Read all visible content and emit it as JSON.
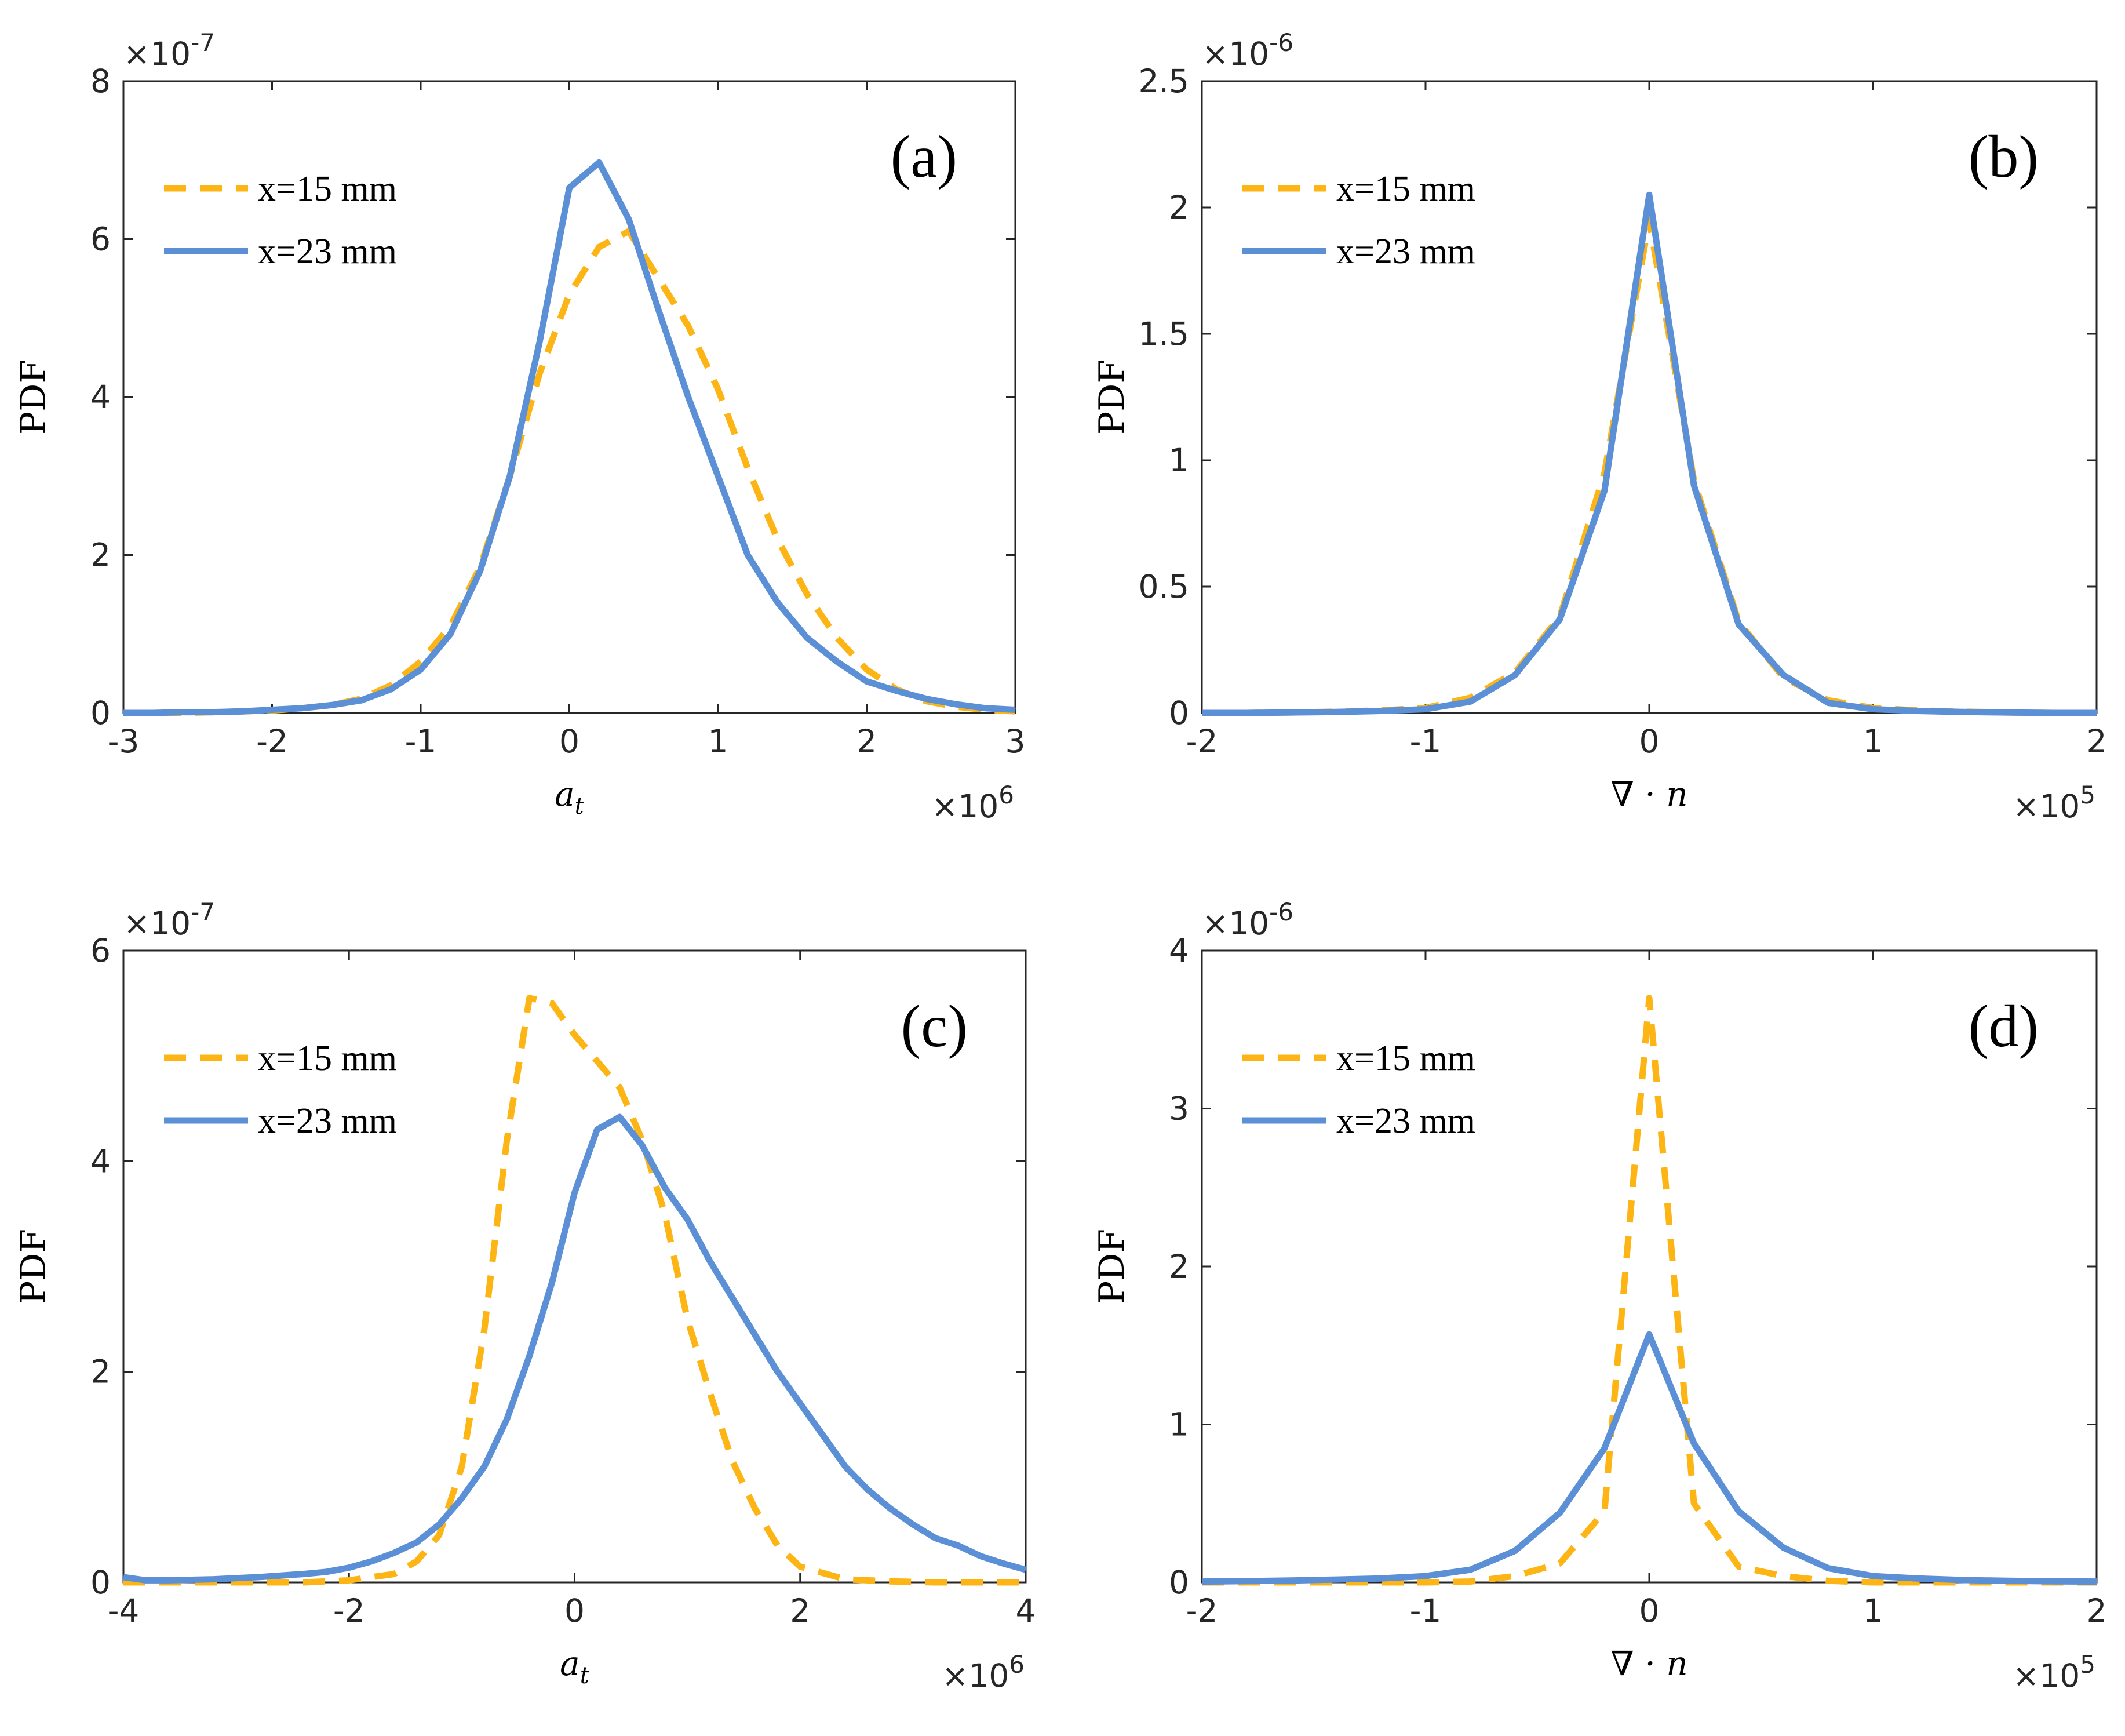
{
  "chart_data": [
    {
      "type": "line",
      "panel_label": "(a)",
      "xlabel": "a_t",
      "xlabel_main": "a",
      "xlabel_sub": "t",
      "ylabel": "PDF",
      "x_exponent": "×10^6",
      "x_exp_base": "×10",
      "x_exp_power": "6",
      "y_exponent": "×10^-7",
      "y_exp_base": "×10",
      "y_exp_power": "-7",
      "xlim": [
        -3,
        3
      ],
      "ylim": [
        0,
        8
      ],
      "xticks": [
        -3,
        -2,
        -1,
        0,
        1,
        2,
        3
      ],
      "xtick_labels": [
        "-3",
        "-2",
        "-1",
        "0",
        "1",
        "2",
        "3"
      ],
      "yticks": [
        0,
        2,
        4,
        6,
        8
      ],
      "ytick_labels": [
        "0",
        "2",
        "4",
        "6",
        "8"
      ],
      "legend_position": "top-left",
      "grid": false,
      "series": [
        {
          "name": "x=15 mm",
          "style": "dashed",
          "color": "#FDB515",
          "x": [
            -3,
            -2.8,
            -2.6,
            -2.4,
            -2.2,
            -2,
            -1.8,
            -1.6,
            -1.4,
            -1.2,
            -1,
            -0.8,
            -0.6,
            -0.4,
            -0.2,
            0,
            0.2,
            0.4,
            0.6,
            0.8,
            1,
            1.2,
            1.4,
            1.6,
            1.8,
            2,
            2.2,
            2.4,
            2.6,
            2.8,
            3
          ],
          "y": [
            0,
            0,
            0,
            0.01,
            0.02,
            0.03,
            0.06,
            0.1,
            0.18,
            0.35,
            0.65,
            1.1,
            1.85,
            3.0,
            4.3,
            5.3,
            5.9,
            6.1,
            5.5,
            4.9,
            4.1,
            3.1,
            2.2,
            1.5,
            0.95,
            0.55,
            0.3,
            0.15,
            0.08,
            0.04,
            0.02
          ]
        },
        {
          "name": "x=23 mm",
          "style": "solid",
          "color": "#5B8FD6",
          "x": [
            -3,
            -2.8,
            -2.6,
            -2.4,
            -2.2,
            -2,
            -1.8,
            -1.6,
            -1.4,
            -1.2,
            -1,
            -0.8,
            -0.6,
            -0.4,
            -0.2,
            0,
            0.2,
            0.4,
            0.6,
            0.8,
            1,
            1.2,
            1.4,
            1.6,
            1.8,
            2,
            2.2,
            2.4,
            2.6,
            2.8,
            3
          ],
          "y": [
            0,
            0,
            0.01,
            0.01,
            0.02,
            0.04,
            0.06,
            0.1,
            0.16,
            0.3,
            0.55,
            1.0,
            1.8,
            3.0,
            4.7,
            6.65,
            6.97,
            6.25,
            5.1,
            4.0,
            3.0,
            2.0,
            1.4,
            0.95,
            0.65,
            0.4,
            0.28,
            0.18,
            0.11,
            0.06,
            0.04
          ]
        }
      ]
    },
    {
      "type": "line",
      "panel_label": "(b)",
      "xlabel": "∇ · n",
      "xlabel_main": "∇ · n",
      "xlabel_sub": "",
      "ylabel": "PDF",
      "x_exponent": "×10^5",
      "x_exp_base": "×10",
      "x_exp_power": "5",
      "y_exponent": "×10^-6",
      "y_exp_base": "×10",
      "y_exp_power": "-6",
      "xlim": [
        -2,
        2
      ],
      "ylim": [
        0,
        2.5
      ],
      "xticks": [
        -2,
        -1,
        0,
        1,
        2
      ],
      "xtick_labels": [
        "-2",
        "-1",
        "0",
        "1",
        "2"
      ],
      "yticks": [
        0,
        0.5,
        1,
        1.5,
        2,
        2.5
      ],
      "ytick_labels": [
        "0",
        "0.5",
        "1",
        "1.5",
        "2",
        "2.5"
      ],
      "legend_position": "top-left",
      "grid": false,
      "series": [
        {
          "name": "x=15 mm",
          "style": "dashed",
          "color": "#FDB515",
          "x": [
            -2,
            -1.8,
            -1.6,
            -1.4,
            -1.2,
            -1,
            -0.8,
            -0.6,
            -0.4,
            -0.2,
            0,
            0.2,
            0.4,
            0.6,
            0.8,
            1,
            1.2,
            1.4,
            1.6,
            1.8,
            2
          ],
          "y": [
            0,
            0,
            0.002,
            0.005,
            0.01,
            0.02,
            0.06,
            0.16,
            0.38,
            0.95,
            1.95,
            0.92,
            0.36,
            0.14,
            0.05,
            0.02,
            0.01,
            0.005,
            0.002,
            0,
            0
          ]
        },
        {
          "name": "x=23 mm",
          "style": "solid",
          "color": "#5B8FD6",
          "x": [
            -2,
            -1.8,
            -1.6,
            -1.4,
            -1.2,
            -1,
            -0.8,
            -0.6,
            -0.4,
            -0.2,
            0,
            0.2,
            0.4,
            0.6,
            0.8,
            1,
            1.2,
            1.4,
            1.6,
            1.8,
            2
          ],
          "y": [
            0,
            0,
            0.002,
            0.004,
            0.008,
            0.015,
            0.045,
            0.15,
            0.37,
            0.88,
            2.05,
            0.9,
            0.35,
            0.15,
            0.04,
            0.015,
            0.008,
            0.004,
            0.002,
            0,
            0
          ]
        }
      ]
    },
    {
      "type": "line",
      "panel_label": "(c)",
      "xlabel": "a_t",
      "xlabel_main": "a",
      "xlabel_sub": "t",
      "ylabel": "PDF",
      "x_exponent": "×10^6",
      "x_exp_base": "×10",
      "x_exp_power": "6",
      "y_exponent": "×10^-7",
      "y_exp_base": "×10",
      "y_exp_power": "-7",
      "xlim": [
        -4,
        4
      ],
      "ylim": [
        0,
        6
      ],
      "xticks": [
        -4,
        -2,
        0,
        2,
        4
      ],
      "xtick_labels": [
        "-4",
        "-2",
        "0",
        "2",
        "4"
      ],
      "yticks": [
        0,
        2,
        4,
        6
      ],
      "ytick_labels": [
        "0",
        "2",
        "4",
        "6"
      ],
      "legend_position": "top-left",
      "grid": false,
      "series": [
        {
          "name": "x=15 mm",
          "style": "dashed",
          "color": "#FDB515",
          "x": [
            -4,
            -3.6,
            -3.2,
            -2.8,
            -2.4,
            -2,
            -1.6,
            -1.4,
            -1.2,
            -1,
            -0.8,
            -0.6,
            -0.4,
            -0.2,
            0,
            0.2,
            0.4,
            0.6,
            0.8,
            1,
            1.2,
            1.4,
            1.6,
            1.8,
            2,
            2.4,
            2.8,
            3.2,
            3.6,
            4
          ],
          "y": [
            0,
            0,
            0,
            0,
            0,
            0.02,
            0.08,
            0.2,
            0.45,
            1.1,
            2.4,
            4.2,
            5.55,
            5.5,
            5.2,
            4.95,
            4.7,
            4.2,
            3.5,
            2.5,
            1.8,
            1.15,
            0.7,
            0.35,
            0.15,
            0.03,
            0.01,
            0,
            0,
            0
          ]
        },
        {
          "name": "x=23 mm",
          "style": "solid",
          "color": "#5B8FD6",
          "x": [
            -4,
            -3.8,
            -3.6,
            -3.2,
            -2.8,
            -2.4,
            -2.2,
            -2,
            -1.8,
            -1.6,
            -1.4,
            -1.2,
            -1,
            -0.8,
            -0.6,
            -0.4,
            -0.2,
            0,
            0.2,
            0.4,
            0.6,
            0.8,
            1,
            1.2,
            1.4,
            1.6,
            1.8,
            2,
            2.2,
            2.4,
            2.6,
            2.8,
            3,
            3.2,
            3.4,
            3.6,
            3.8,
            4
          ],
          "y": [
            0.05,
            0.02,
            0.02,
            0.03,
            0.05,
            0.08,
            0.1,
            0.14,
            0.2,
            0.28,
            0.38,
            0.55,
            0.8,
            1.1,
            1.55,
            2.15,
            2.85,
            3.7,
            4.3,
            4.42,
            4.15,
            3.75,
            3.45,
            3.05,
            2.7,
            2.35,
            2.0,
            1.7,
            1.4,
            1.1,
            0.88,
            0.7,
            0.55,
            0.42,
            0.35,
            0.25,
            0.18,
            0.12
          ]
        }
      ]
    },
    {
      "type": "line",
      "panel_label": "(d)",
      "xlabel": "∇ · n",
      "xlabel_main": "∇ · n",
      "xlabel_sub": "",
      "ylabel": "PDF",
      "x_exponent": "×10^5",
      "x_exp_base": "×10",
      "x_exp_power": "5",
      "y_exponent": "×10^-6",
      "y_exp_base": "×10",
      "y_exp_power": "-6",
      "xlim": [
        -2,
        2
      ],
      "ylim": [
        0,
        4
      ],
      "xticks": [
        -2,
        -1,
        0,
        1,
        2
      ],
      "xtick_labels": [
        "-2",
        "-1",
        "0",
        "1",
        "2"
      ],
      "yticks": [
        0,
        1,
        2,
        3,
        4
      ],
      "ytick_labels": [
        "0",
        "1",
        "2",
        "3",
        "4"
      ],
      "legend_position": "top-left",
      "grid": false,
      "series": [
        {
          "name": "x=15 mm",
          "style": "dashed",
          "color": "#FDB515",
          "x": [
            -2,
            -1.8,
            -1.6,
            -1.4,
            -1.2,
            -1,
            -0.8,
            -0.6,
            -0.4,
            -0.2,
            0,
            0.2,
            0.4,
            0.6,
            0.8,
            1,
            1.2,
            1.4,
            1.6,
            1.8,
            2
          ],
          "y": [
            0,
            0,
            0,
            0,
            0,
            0,
            0.005,
            0.04,
            0.12,
            0.45,
            3.7,
            0.5,
            0.1,
            0.04,
            0.01,
            0,
            0,
            0,
            0,
            0,
            0
          ]
        },
        {
          "name": "x=23 mm",
          "style": "solid",
          "color": "#5B8FD6",
          "x": [
            -2,
            -1.8,
            -1.6,
            -1.4,
            -1.2,
            -1,
            -0.8,
            -0.6,
            -0.4,
            -0.2,
            0,
            0.2,
            0.4,
            0.6,
            0.8,
            1,
            1.2,
            1.4,
            1.6,
            1.8,
            2
          ],
          "y": [
            0.005,
            0.008,
            0.012,
            0.018,
            0.025,
            0.04,
            0.08,
            0.2,
            0.44,
            0.85,
            1.57,
            0.88,
            0.45,
            0.22,
            0.09,
            0.04,
            0.025,
            0.015,
            0.01,
            0.007,
            0.005
          ]
        }
      ]
    }
  ]
}
